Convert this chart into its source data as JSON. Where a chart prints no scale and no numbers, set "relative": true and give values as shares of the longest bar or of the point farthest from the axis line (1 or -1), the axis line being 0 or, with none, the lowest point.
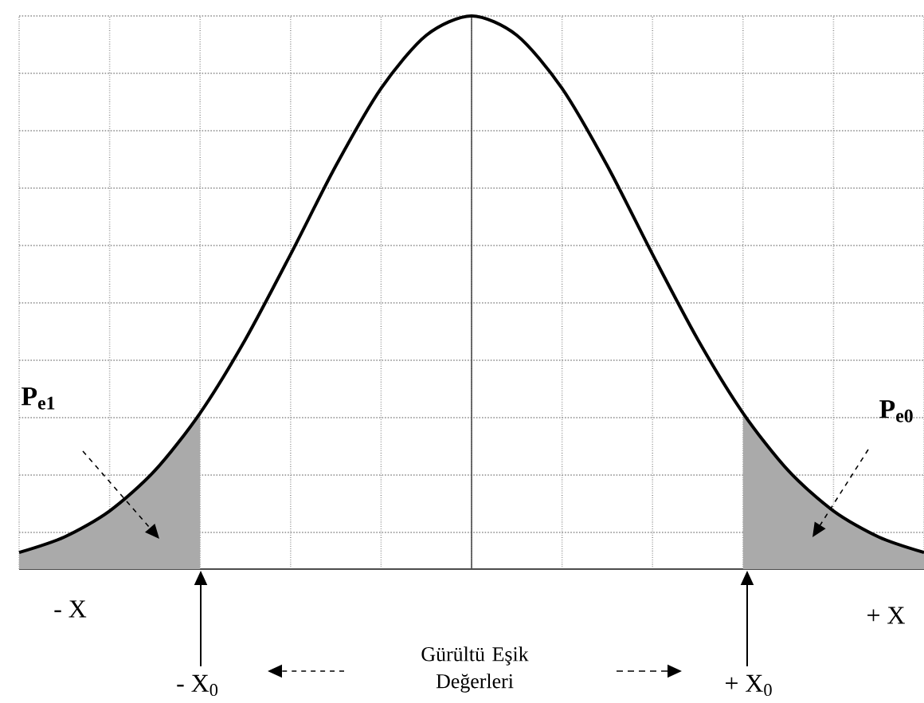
{
  "chart_data": {
    "type": "line",
    "relative": true,
    "grid": true,
    "marker": "none",
    "categories": [
      null,
      null,
      null,
      null,
      null,
      null,
      null,
      null,
      null,
      null,
      null,
      null,
      null,
      null,
      null,
      null,
      null,
      null,
      null,
      null,
      null
    ],
    "series": [
      {
        "color": "#000000",
        "values": [
          0.03,
          0.058,
          0.105,
          0.178,
          0.282,
          0.415,
          0.569,
          0.729,
          0.869,
          0.965,
          1.0,
          0.965,
          0.869,
          0.729,
          0.569,
          0.415,
          0.282,
          0.178,
          0.105,
          0.058,
          0.03
        ]
      },
      {
        "type": "area",
        "color": "#aaaaaa",
        "values": [
          0.03,
          0.058,
          0.105,
          0.178,
          0.282,
          null,
          null,
          null,
          null,
          null,
          null,
          null,
          null,
          null,
          null,
          null,
          null,
          null,
          null,
          null,
          null
        ]
      },
      {
        "type": "area",
        "color": "#aaaaaa",
        "values": [
          null,
          null,
          null,
          null,
          null,
          null,
          null,
          null,
          null,
          null,
          null,
          null,
          null,
          null,
          null,
          null,
          0.282,
          0.178,
          0.105,
          0.058,
          0.03
        ]
      }
    ],
    "annotations": [
      "P$_{e1}$",
      "P$_{e0}$",
      "- X",
      "+ X",
      "- X$_{0}$",
      "+ X$_{0}$",
      "Gürültü Eşik Değerleri"
    ]
  }
}
